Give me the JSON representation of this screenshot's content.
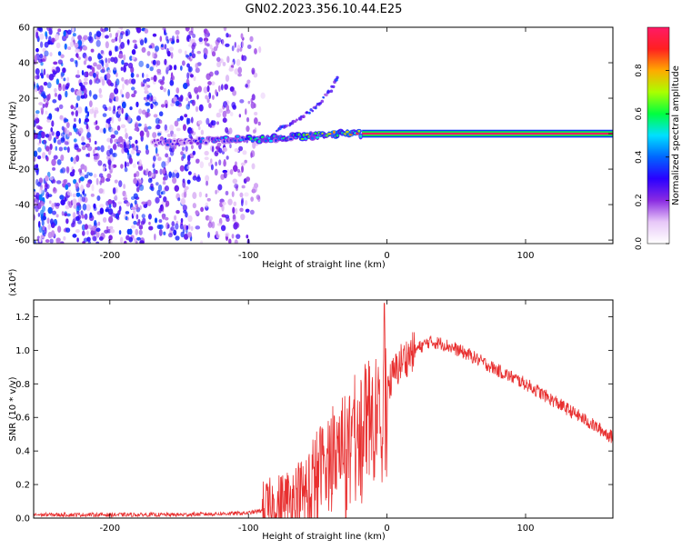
{
  "title": "GN02.2023.356.10.44.E25",
  "chart_data": [
    {
      "type": "heatmap",
      "xlabel": "Height of straight line (km)",
      "ylabel": "Frequency (Hz)",
      "xlim": [
        -255,
        163
      ],
      "ylim": [
        -62,
        60
      ],
      "xticks": [
        -200,
        -100,
        0,
        100
      ],
      "xtick_labels": [
        "-200",
        "-100",
        "0",
        "100"
      ],
      "yticks": [
        -60,
        -40,
        -20,
        0,
        20,
        40,
        60
      ],
      "ytick_labels": [
        "-60",
        "-40",
        "-20",
        "0",
        "20",
        "40",
        "60"
      ],
      "colorbar": {
        "label": "Normalized spectral amplitude",
        "range": [
          0,
          1
        ],
        "ticks": [
          0.0,
          0.2,
          0.4,
          0.6,
          0.8
        ],
        "tick_labels": [
          "0.0",
          "0.2",
          "0.4",
          "0.6",
          "0.8"
        ],
        "colormap": [
          "#ffffff",
          "#e8c8f8",
          "#8a2be2",
          "#2a00ff",
          "#0066ff",
          "#00e0ff",
          "#00ff40",
          "#aaff00",
          "#ffaa00",
          "#ff2020",
          "#ff1a66"
        ]
      },
      "ridge": [
        {
          "x": -170,
          "y": -5,
          "a": 0.25
        },
        {
          "x": -150,
          "y": -5,
          "a": 0.3
        },
        {
          "x": -130,
          "y": -4,
          "a": 0.4
        },
        {
          "x": -110,
          "y": -3,
          "a": 0.45
        },
        {
          "x": -90,
          "y": -3,
          "a": 0.5
        },
        {
          "x": -70,
          "y": -2,
          "a": 0.55
        },
        {
          "x": -50,
          "y": -1,
          "a": 0.6
        },
        {
          "x": -30,
          "y": 0,
          "a": 0.7
        },
        {
          "x": -15,
          "y": 0,
          "a": 0.8
        },
        {
          "x": 0,
          "y": 0,
          "a": 1.0
        },
        {
          "x": 163,
          "y": 0,
          "a": 1.0
        }
      ],
      "branch": [
        {
          "x": -80,
          "y": 2
        },
        {
          "x": -70,
          "y": 5
        },
        {
          "x": -60,
          "y": 10
        },
        {
          "x": -50,
          "y": 16
        },
        {
          "x": -40,
          "y": 25
        },
        {
          "x": -35,
          "y": 33
        }
      ]
    },
    {
      "type": "line",
      "xlabel": "Height of straight line (km)",
      "ylabel": "SNR (10 * v/v)",
      "scale_label": "(x10⁴)",
      "xlim": [
        -255,
        163
      ],
      "ylim": [
        0,
        1.3
      ],
      "xticks": [
        -200,
        -100,
        0,
        100
      ],
      "xtick_labels": [
        "-200",
        "-100",
        "0",
        "100"
      ],
      "yticks": [
        0.0,
        0.2,
        0.4,
        0.6,
        0.8,
        1.0,
        1.2
      ],
      "ytick_labels": [
        "0.0",
        "0.2",
        "0.4",
        "0.6",
        "0.8",
        "1.0",
        "1.2"
      ],
      "color": "#e83030",
      "envelope": [
        {
          "x": -255,
          "y": 0.02
        },
        {
          "x": -150,
          "y": 0.02
        },
        {
          "x": -100,
          "y": 0.03
        },
        {
          "x": -80,
          "y": 0.06
        },
        {
          "x": -60,
          "y": 0.15
        },
        {
          "x": -50,
          "y": 0.3
        },
        {
          "x": -40,
          "y": 0.4
        },
        {
          "x": -30,
          "y": 0.5
        },
        {
          "x": -20,
          "y": 0.6
        },
        {
          "x": -10,
          "y": 0.65
        },
        {
          "x": 0,
          "y": 0.78
        },
        {
          "x": 10,
          "y": 0.93
        },
        {
          "x": 20,
          "y": 1.0
        },
        {
          "x": 30,
          "y": 1.05
        },
        {
          "x": 40,
          "y": 1.04
        },
        {
          "x": 60,
          "y": 0.97
        },
        {
          "x": 80,
          "y": 0.88
        },
        {
          "x": 100,
          "y": 0.8
        },
        {
          "x": 120,
          "y": 0.7
        },
        {
          "x": 140,
          "y": 0.6
        },
        {
          "x": 163,
          "y": 0.48
        }
      ],
      "peak": {
        "x": -2,
        "y": 1.28
      }
    }
  ]
}
